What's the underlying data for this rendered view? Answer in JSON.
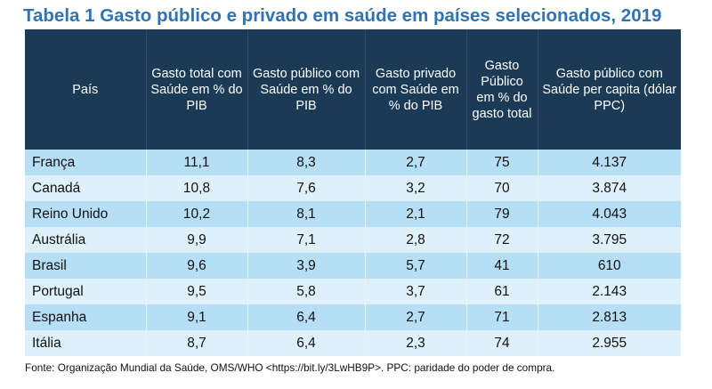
{
  "title": "Tabela 1 Gasto público e privado em saúde em países selecionados, 2019",
  "table": {
    "headers": [
      "País",
      "Gasto total com Saúde em % do PIB",
      "Gasto público com Saúde em % do PIB",
      "Gasto privado com Saúde em % do PIB",
      "Gasto Público em % do gasto total",
      "Gasto público com Saúde per capita (dólar PPC)"
    ],
    "rows": [
      [
        "França",
        "11,1",
        "8,3",
        "2,7",
        "75",
        "4.137"
      ],
      [
        "Canadá",
        "10,8",
        "7,6",
        "3,2",
        "70",
        "3.874"
      ],
      [
        "Reino Unido",
        "10,2",
        "8,1",
        "2,1",
        "79",
        "4.043"
      ],
      [
        "Austrália",
        "9,9",
        "7,1",
        "2,8",
        "72",
        "3.795"
      ],
      [
        "Brasil",
        "9,6",
        "3,9",
        "5,7",
        "41",
        "610"
      ],
      [
        "Portugal",
        "9,5",
        "5,8",
        "3,7",
        "61",
        "2.143"
      ],
      [
        "Espanha",
        "9,1",
        "6,4",
        "2,7",
        "71",
        "2.813"
      ],
      [
        "Itália",
        "8,7",
        "6,4",
        "2,3",
        "74",
        "2.955"
      ]
    ]
  },
  "source": "Fonte: Organização Mundial da Saúde, OMS/WHO <https://bit.ly/3LwHB9P>. PPC: paridade do poder de compra."
}
